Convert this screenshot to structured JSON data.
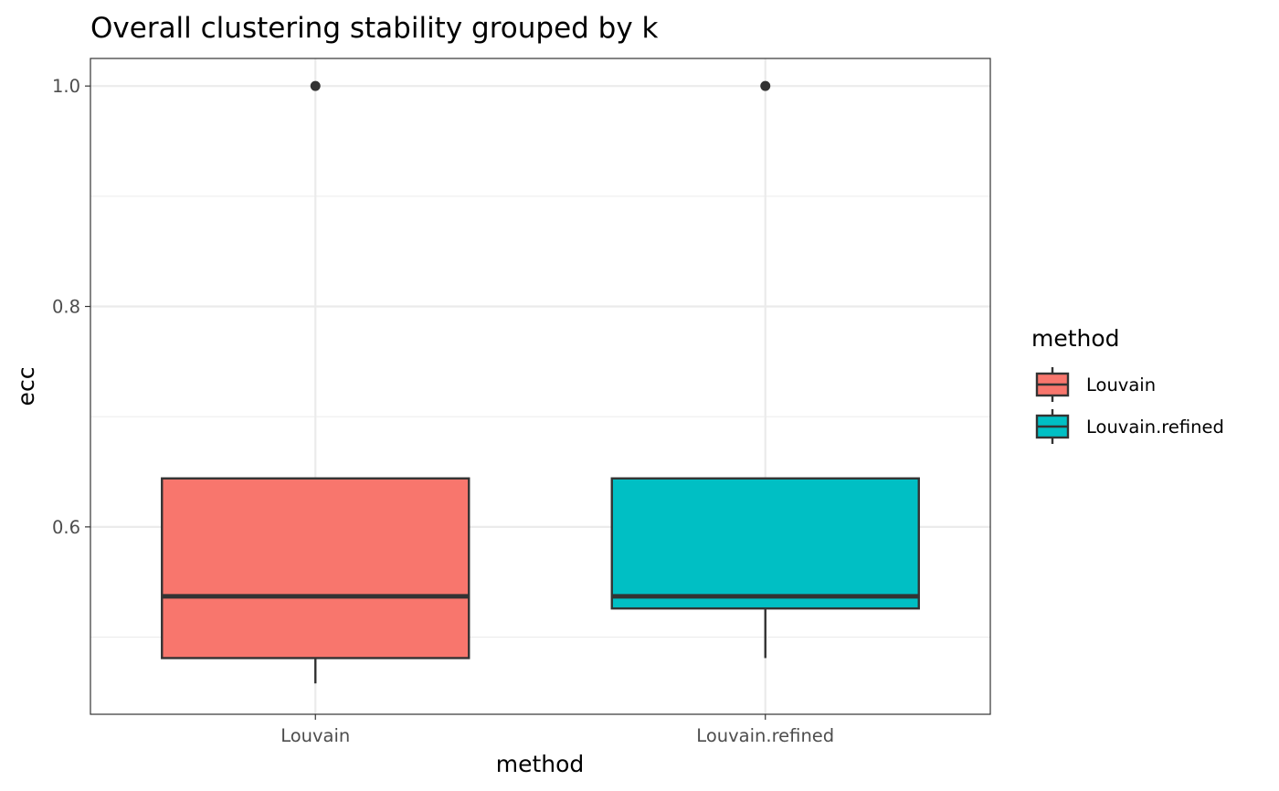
{
  "chart_data": {
    "type": "boxplot",
    "title": "Overall clustering stability grouped by k",
    "xlabel": "method",
    "ylabel": "ecc",
    "categories": [
      "Louvain",
      "Louvain.refined"
    ],
    "ylim": [
      0.43,
      1.025
    ],
    "yticks": [
      {
        "value": 0.6,
        "label": "0.6"
      },
      {
        "value": 0.8,
        "label": "0.8"
      },
      {
        "value": 1.0,
        "label": "1.0"
      }
    ],
    "yminor": [
      0.5,
      0.7,
      0.9
    ],
    "grid": true,
    "legend": {
      "title": "method",
      "position": "right",
      "entries": [
        "Louvain",
        "Louvain.refined"
      ]
    },
    "series": [
      {
        "name": "Louvain",
        "color": "#F8766D",
        "whisker_low": 0.458,
        "q1": 0.481,
        "median": 0.537,
        "q3": 0.644,
        "whisker_high": 0.644,
        "outliers": [
          1.0
        ]
      },
      {
        "name": "Louvain.refined",
        "color": "#00BFC4",
        "whisker_low": 0.481,
        "q1": 0.526,
        "median": 0.537,
        "q3": 0.644,
        "whisker_high": 0.644,
        "outliers": [
          1.0
        ]
      }
    ]
  }
}
